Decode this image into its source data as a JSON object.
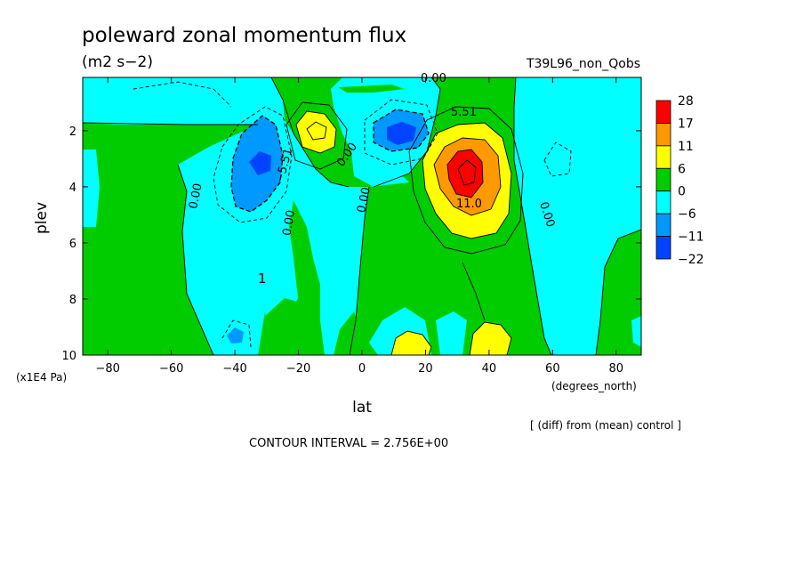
{
  "chart_data": {
    "type": "heatmap",
    "title": "poleward zonal momentum flux",
    "subtitle": "(m2 s−2)",
    "run_label": "T39L96_non_Qobs",
    "xlabel": "lat",
    "x_units": "(degrees_north)",
    "ylabel": "plev",
    "y_units": "(x1E4 Pa)",
    "xlim": [
      -87.9,
      87.9
    ],
    "ylim": [
      10,
      0.1
    ],
    "x_ticks": [
      -80,
      -60,
      -40,
      -20,
      0,
      20,
      40,
      60,
      80
    ],
    "x_tick_labels": [
      "−80",
      "−60",
      "−40",
      "−20",
      "0",
      "20",
      "40",
      "60",
      "80"
    ],
    "y_ticks": [
      2,
      4,
      6,
      8,
      10
    ],
    "y_tick_labels": [
      "2",
      "4",
      "6",
      "8",
      "10"
    ],
    "colorbar": {
      "labels": [
        "28",
        "17",
        "11",
        "6",
        "0",
        "−6",
        "−11",
        "−22"
      ],
      "colors": [
        "#ff0000",
        "#ff9900",
        "#ffff00",
        "#00cc00",
        "#00ffff",
        "#0099ff",
        "#0044ff"
      ]
    },
    "contour_labels": [
      "0.00",
      "5.51",
      "11.0",
      "0.00",
      "0.00",
      "0.00",
      "−5.51",
      "0.00",
      "0.00",
      "1"
    ],
    "annotation": "[ (diff) from (mean) control ]",
    "contour_interval": "CONTOUR INTERVAL = 2.756E+00",
    "features": [
      {
        "kind": "max",
        "lat": 32,
        "plev": 3.2,
        "value": 28
      },
      {
        "kind": "max",
        "lat": -14,
        "plev": 2.0,
        "value": 11
      },
      {
        "kind": "max",
        "lat": 34,
        "plev": 9.3,
        "value": 6
      },
      {
        "kind": "max",
        "lat": 14,
        "plev": 9.5,
        "value": 6
      },
      {
        "kind": "min",
        "lat": 13,
        "plev": 2.2,
        "value": -14
      },
      {
        "kind": "min",
        "lat": -32,
        "plev": 3.3,
        "value": -14
      },
      {
        "kind": "min",
        "lat": -39,
        "plev": 9.2,
        "value": -8
      }
    ]
  }
}
